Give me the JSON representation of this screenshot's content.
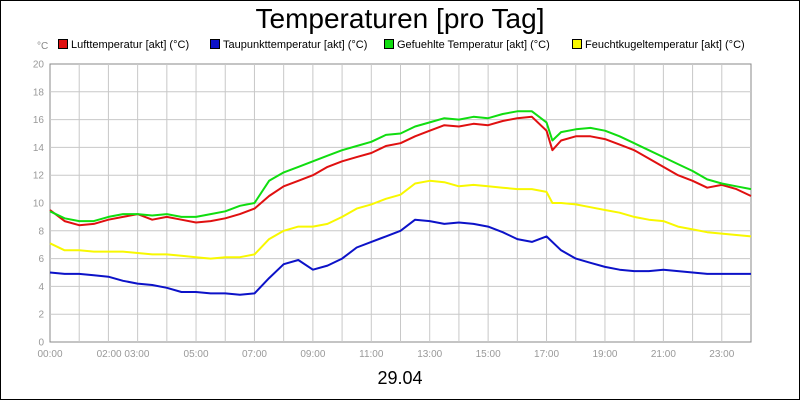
{
  "chart_data": {
    "type": "line",
    "title": "Temperaturen [pro Tag]",
    "date_label": "29.04",
    "unit": "°C",
    "ylim": [
      0,
      20
    ],
    "y_ticks": [
      "0",
      "2",
      "4",
      "6",
      "8",
      "10",
      "12",
      "14",
      "16",
      "18",
      "20"
    ],
    "x_tick_labels": [
      "00:00",
      "02:00 03:00",
      "05:00",
      "07:00",
      "09:00",
      "11:00",
      "13:00",
      "15:00",
      "17:00",
      "19:00",
      "21:00",
      "23:00"
    ],
    "x_tick_hours": [
      0,
      2.5,
      5,
      7,
      9,
      11,
      13,
      15,
      17,
      19,
      21,
      23
    ],
    "xlim_hours": [
      0,
      24
    ],
    "grid": true,
    "legend_position": "top",
    "series": [
      {
        "name": "Lufttemperatur [akt] (°C)",
        "color": "#e01010",
        "points": [
          [
            0,
            9.5
          ],
          [
            0.5,
            8.7
          ],
          [
            1,
            8.4
          ],
          [
            1.5,
            8.5
          ],
          [
            2,
            8.8
          ],
          [
            2.5,
            9.0
          ],
          [
            3,
            9.2
          ],
          [
            3.5,
            8.8
          ],
          [
            4,
            9.0
          ],
          [
            4.5,
            8.8
          ],
          [
            5,
            8.6
          ],
          [
            5.5,
            8.7
          ],
          [
            6,
            8.9
          ],
          [
            6.5,
            9.2
          ],
          [
            7,
            9.6
          ],
          [
            7.5,
            10.5
          ],
          [
            8,
            11.2
          ],
          [
            8.5,
            11.6
          ],
          [
            9,
            12.0
          ],
          [
            9.5,
            12.6
          ],
          [
            10,
            13.0
          ],
          [
            10.5,
            13.3
          ],
          [
            11,
            13.6
          ],
          [
            11.5,
            14.1
          ],
          [
            12,
            14.3
          ],
          [
            12.5,
            14.8
          ],
          [
            13,
            15.2
          ],
          [
            13.5,
            15.6
          ],
          [
            14,
            15.5
          ],
          [
            14.5,
            15.7
          ],
          [
            15,
            15.6
          ],
          [
            15.5,
            15.9
          ],
          [
            16,
            16.1
          ],
          [
            16.5,
            16.2
          ],
          [
            17,
            15.2
          ],
          [
            17.2,
            13.8
          ],
          [
            17.5,
            14.5
          ],
          [
            18,
            14.8
          ],
          [
            18.5,
            14.8
          ],
          [
            19,
            14.6
          ],
          [
            19.5,
            14.2
          ],
          [
            20,
            13.8
          ],
          [
            20.5,
            13.2
          ],
          [
            21,
            12.6
          ],
          [
            21.5,
            12.0
          ],
          [
            22,
            11.6
          ],
          [
            22.5,
            11.1
          ],
          [
            23,
            11.3
          ],
          [
            23.5,
            11.0
          ],
          [
            24,
            10.5
          ]
        ]
      },
      {
        "name": "Taupunkttemperatur [akt] (°C)",
        "color": "#0c12c8",
        "points": [
          [
            0,
            5.0
          ],
          [
            0.5,
            4.9
          ],
          [
            1,
            4.9
          ],
          [
            1.5,
            4.8
          ],
          [
            2,
            4.7
          ],
          [
            2.5,
            4.4
          ],
          [
            3,
            4.2
          ],
          [
            3.5,
            4.1
          ],
          [
            4,
            3.9
          ],
          [
            4.5,
            3.6
          ],
          [
            5,
            3.6
          ],
          [
            5.5,
            3.5
          ],
          [
            6,
            3.5
          ],
          [
            6.5,
            3.4
          ],
          [
            7,
            3.5
          ],
          [
            7.5,
            4.6
          ],
          [
            8,
            5.6
          ],
          [
            8.5,
            5.9
          ],
          [
            9,
            5.2
          ],
          [
            9.5,
            5.5
          ],
          [
            10,
            6.0
          ],
          [
            10.5,
            6.8
          ],
          [
            11,
            7.2
          ],
          [
            11.5,
            7.6
          ],
          [
            12,
            8.0
          ],
          [
            12.5,
            8.8
          ],
          [
            13,
            8.7
          ],
          [
            13.5,
            8.5
          ],
          [
            14,
            8.6
          ],
          [
            14.5,
            8.5
          ],
          [
            15,
            8.3
          ],
          [
            15.5,
            7.9
          ],
          [
            16,
            7.4
          ],
          [
            16.5,
            7.2
          ],
          [
            17,
            7.6
          ],
          [
            17.5,
            6.6
          ],
          [
            18,
            6.0
          ],
          [
            18.5,
            5.7
          ],
          [
            19,
            5.4
          ],
          [
            19.5,
            5.2
          ],
          [
            20,
            5.1
          ],
          [
            20.5,
            5.1
          ],
          [
            21,
            5.2
          ],
          [
            21.5,
            5.1
          ],
          [
            22,
            5.0
          ],
          [
            22.5,
            4.9
          ],
          [
            23,
            4.9
          ],
          [
            23.5,
            4.9
          ],
          [
            24,
            4.9
          ]
        ]
      },
      {
        "name": "Gefuehlte Temperatur [akt] (°C)",
        "color": "#10dd10",
        "points": [
          [
            0,
            9.4
          ],
          [
            0.5,
            8.9
          ],
          [
            1,
            8.7
          ],
          [
            1.5,
            8.7
          ],
          [
            2,
            9.0
          ],
          [
            2.5,
            9.2
          ],
          [
            3,
            9.2
          ],
          [
            3.5,
            9.1
          ],
          [
            4,
            9.2
          ],
          [
            4.5,
            9.0
          ],
          [
            5,
            9.0
          ],
          [
            5.5,
            9.2
          ],
          [
            6,
            9.4
          ],
          [
            6.5,
            9.8
          ],
          [
            7,
            10.0
          ],
          [
            7.5,
            11.6
          ],
          [
            8,
            12.2
          ],
          [
            8.5,
            12.6
          ],
          [
            9,
            13.0
          ],
          [
            9.5,
            13.4
          ],
          [
            10,
            13.8
          ],
          [
            10.5,
            14.1
          ],
          [
            11,
            14.4
          ],
          [
            11.5,
            14.9
          ],
          [
            12,
            15.0
          ],
          [
            12.5,
            15.5
          ],
          [
            13,
            15.8
          ],
          [
            13.5,
            16.1
          ],
          [
            14,
            16.0
          ],
          [
            14.5,
            16.2
          ],
          [
            15,
            16.1
          ],
          [
            15.5,
            16.4
          ],
          [
            16,
            16.6
          ],
          [
            16.5,
            16.6
          ],
          [
            17,
            15.8
          ],
          [
            17.2,
            14.5
          ],
          [
            17.5,
            15.1
          ],
          [
            18,
            15.3
          ],
          [
            18.5,
            15.4
          ],
          [
            19,
            15.2
          ],
          [
            19.5,
            14.8
          ],
          [
            20,
            14.3
          ],
          [
            20.5,
            13.8
          ],
          [
            21,
            13.3
          ],
          [
            21.5,
            12.8
          ],
          [
            22,
            12.3
          ],
          [
            22.5,
            11.7
          ],
          [
            23,
            11.4
          ],
          [
            23.5,
            11.2
          ],
          [
            24,
            11.0
          ]
        ]
      },
      {
        "name": "Feuchtkugeltemperatur [akt] (°C)",
        "color": "#f8f800",
        "points": [
          [
            0,
            7.1
          ],
          [
            0.5,
            6.6
          ],
          [
            1,
            6.6
          ],
          [
            1.5,
            6.5
          ],
          [
            2,
            6.5
          ],
          [
            2.5,
            6.5
          ],
          [
            3,
            6.4
          ],
          [
            3.5,
            6.3
          ],
          [
            4,
            6.3
          ],
          [
            4.5,
            6.2
          ],
          [
            5,
            6.1
          ],
          [
            5.5,
            6.0
          ],
          [
            6,
            6.1
          ],
          [
            6.5,
            6.1
          ],
          [
            7,
            6.3
          ],
          [
            7.5,
            7.4
          ],
          [
            8,
            8.0
          ],
          [
            8.5,
            8.3
          ],
          [
            9,
            8.3
          ],
          [
            9.5,
            8.5
          ],
          [
            10,
            9.0
          ],
          [
            10.5,
            9.6
          ],
          [
            11,
            9.9
          ],
          [
            11.5,
            10.3
          ],
          [
            12,
            10.6
          ],
          [
            12.5,
            11.4
          ],
          [
            13,
            11.6
          ],
          [
            13.5,
            11.5
          ],
          [
            14,
            11.2
          ],
          [
            14.5,
            11.3
          ],
          [
            15,
            11.2
          ],
          [
            15.5,
            11.1
          ],
          [
            16,
            11.0
          ],
          [
            16.5,
            11.0
          ],
          [
            17,
            10.8
          ],
          [
            17.2,
            10.0
          ],
          [
            17.5,
            10.0
          ],
          [
            18,
            9.9
          ],
          [
            18.5,
            9.7
          ],
          [
            19,
            9.5
          ],
          [
            19.5,
            9.3
          ],
          [
            20,
            9.0
          ],
          [
            20.5,
            8.8
          ],
          [
            21,
            8.7
          ],
          [
            21.5,
            8.3
          ],
          [
            22,
            8.1
          ],
          [
            22.5,
            7.9
          ],
          [
            23,
            7.8
          ],
          [
            23.5,
            7.7
          ],
          [
            24,
            7.6
          ]
        ]
      }
    ]
  }
}
